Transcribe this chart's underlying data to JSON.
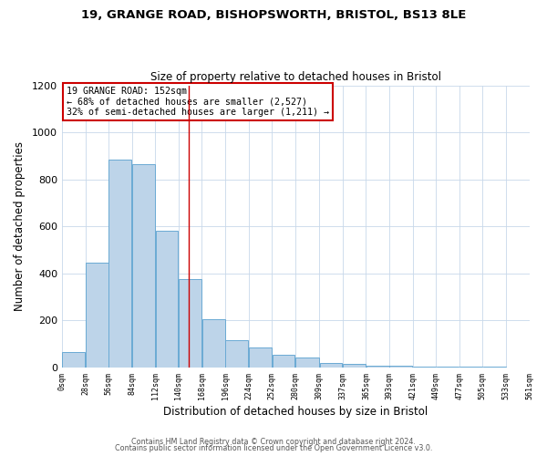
{
  "title_line1": "19, GRANGE ROAD, BISHOPSWORTH, BRISTOL, BS13 8LE",
  "title_line2": "Size of property relative to detached houses in Bristol",
  "xlabel": "Distribution of detached houses by size in Bristol",
  "ylabel": "Number of detached properties",
  "bar_left_edges": [
    0,
    28,
    56,
    84,
    112,
    140,
    168,
    196,
    224,
    252,
    280,
    309,
    337,
    365,
    393,
    421,
    449,
    477,
    505,
    533
  ],
  "bar_widths": [
    28,
    28,
    28,
    28,
    28,
    28,
    28,
    28,
    28,
    28,
    29,
    28,
    28,
    28,
    28,
    28,
    28,
    28,
    28,
    28
  ],
  "bar_heights": [
    65,
    445,
    885,
    865,
    580,
    375,
    205,
    115,
    85,
    55,
    42,
    20,
    14,
    8,
    5,
    3,
    2,
    1,
    1,
    0
  ],
  "bar_color": "#bdd4e9",
  "bar_edge_color": "#6aaad4",
  "marker_x": 152,
  "marker_color": "#cc0000",
  "ylim": [
    0,
    1200
  ],
  "yticks": [
    0,
    200,
    400,
    600,
    800,
    1000,
    1200
  ],
  "xtick_positions": [
    0,
    28,
    56,
    84,
    112,
    140,
    168,
    196,
    224,
    252,
    280,
    309,
    337,
    365,
    393,
    421,
    449,
    477,
    505,
    533,
    561
  ],
  "xtick_labels": [
    "0sqm",
    "28sqm",
    "56sqm",
    "84sqm",
    "112sqm",
    "140sqm",
    "168sqm",
    "196sqm",
    "224sqm",
    "252sqm",
    "280sqm",
    "309sqm",
    "337sqm",
    "365sqm",
    "393sqm",
    "421sqm",
    "449sqm",
    "477sqm",
    "505sqm",
    "533sqm",
    "561sqm"
  ],
  "annotation_title": "19 GRANGE ROAD: 152sqm",
  "annotation_line1": "← 68% of detached houses are smaller (2,527)",
  "annotation_line2": "32% of semi-detached houses are larger (1,211) →",
  "annotation_box_color": "#ffffff",
  "annotation_box_edge": "#cc0000",
  "footnote1": "Contains HM Land Registry data © Crown copyright and database right 2024.",
  "footnote2": "Contains public sector information licensed under the Open Government Licence v3.0.",
  "bg_color": "#ffffff",
  "grid_color": "#c8d8ea"
}
